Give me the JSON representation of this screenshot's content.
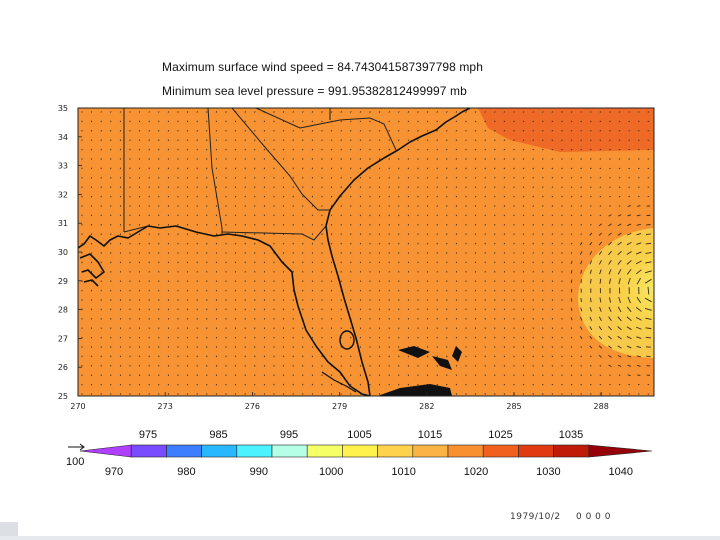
{
  "title_wind": "Maximum surface wind speed = 84.743041587397798 mph",
  "title_pressure": "Minimum sea level pressure = 991.95382812499997 mb",
  "lat_ticks": [
    "35",
    "34",
    "33",
    "32",
    "31",
    "30",
    "29",
    "28",
    "27",
    "26",
    "25"
  ],
  "lon_ticks": [
    "270",
    "273",
    "276",
    "279",
    "282",
    "285",
    "288"
  ],
  "colorbar": {
    "upper_labels": [
      "975",
      "985",
      "995",
      "1005",
      "1015",
      "1025",
      "1035"
    ],
    "lower_labels": [
      "970",
      "980",
      "990",
      "1000",
      "1010",
      "1020",
      "1030",
      "1040"
    ],
    "colors": [
      "#b040ff",
      "#7a4cff",
      "#3d7dff",
      "#29b7ff",
      "#4df2ff",
      "#b5ffe6",
      "#f5ff66",
      "#fff24d",
      "#ffd24d",
      "#fbb443",
      "#f89030",
      "#f2601e",
      "#e03a12",
      "#c01a08",
      "#96000a"
    ],
    "ref_vector_label": "100"
  },
  "timestamp": "1979/10/2",
  "time_code": "0 0 0 0"
}
